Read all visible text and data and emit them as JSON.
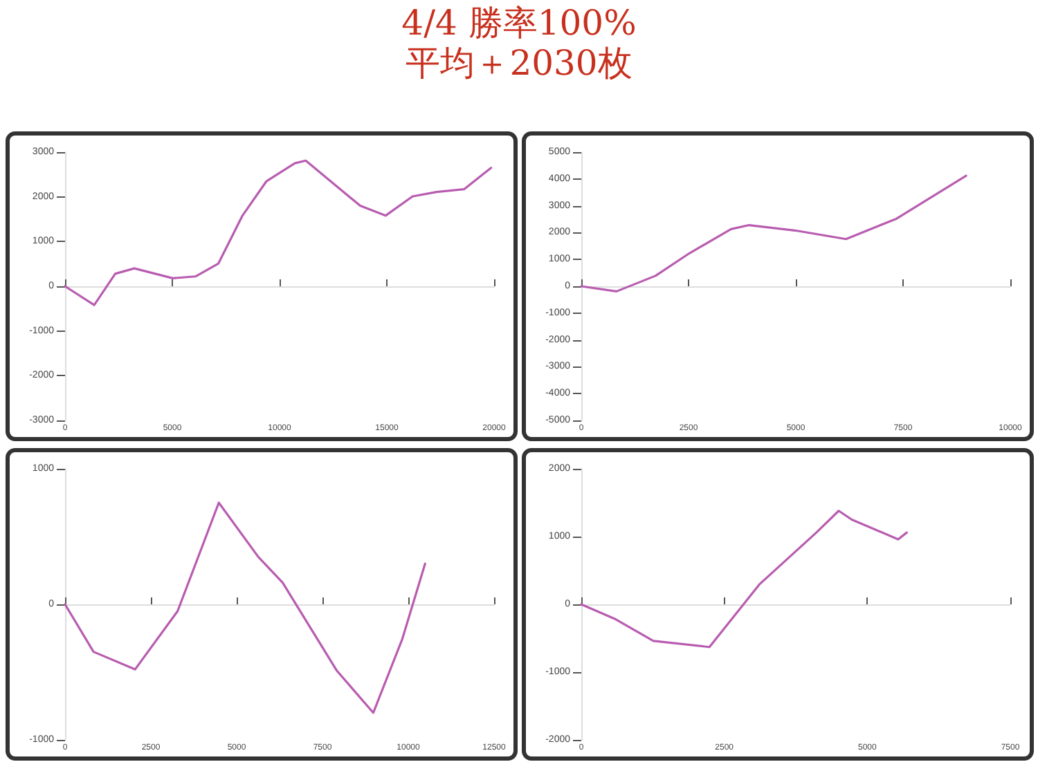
{
  "chart_data": [
    {
      "type": "line",
      "title": "4/4 勝率100%",
      "subtitle": "平均＋2030枚",
      "x": [
        0,
        1360,
        2340,
        3230,
        5020,
        6080,
        7150,
        8270,
        9390,
        10710,
        11220,
        13760,
        14940,
        16200,
        17320,
        18600,
        19860
      ],
      "series": [
        {
          "color": "#b85cb0",
          "values": [
            0,
            -420,
            280,
            400,
            180,
            220,
            510,
            1580,
            2350,
            2750,
            2810,
            1800,
            1580,
            2010,
            2110,
            2170,
            2650
          ]
        }
      ],
      "xlim": [
        0,
        20000
      ],
      "xticks": [
        0,
        5000,
        10000,
        15000,
        20000
      ],
      "ylim": [
        -3000,
        3000
      ],
      "yticks": [
        -3000,
        -2000,
        -1000,
        0,
        1000,
        2000,
        3000
      ],
      "marker": "none",
      "line_style": "solid"
    },
    {
      "type": "line",
      "x": [
        0,
        820,
        1730,
        2520,
        3490,
        3910,
        4980,
        6170,
        7350,
        8970
      ],
      "series": [
        {
          "color": "#b85cb0",
          "values": [
            0,
            -190,
            390,
            1230,
            2130,
            2280,
            2080,
            1760,
            2520,
            4120
          ]
        }
      ],
      "xlim": [
        0,
        10000
      ],
      "xticks": [
        0,
        2500,
        5000,
        7500,
        10000
      ],
      "ylim": [
        -5000,
        5000
      ],
      "yticks": [
        -5000,
        -4000,
        -3000,
        -2000,
        -1000,
        0,
        1000,
        2000,
        3000,
        4000,
        5000
      ],
      "marker": "none",
      "line_style": "solid"
    },
    {
      "type": "line",
      "x": [
        0,
        830,
        2040,
        3280,
        4480,
        5630,
        6340,
        7920,
        8980,
        9820,
        10490
      ],
      "series": [
        {
          "color": "#b85cb0",
          "values": [
            0,
            -350,
            -480,
            -50,
            750,
            350,
            160,
            -490,
            -800,
            -260,
            300
          ]
        }
      ],
      "xlim": [
        0,
        12500
      ],
      "xticks": [
        0,
        2500,
        5000,
        7500,
        10000,
        12500
      ],
      "ylim": [
        -1000,
        1000
      ],
      "yticks": [
        -1000,
        0,
        1000
      ],
      "marker": "none",
      "line_style": "solid"
    },
    {
      "type": "line",
      "x": [
        0,
        600,
        1260,
        2240,
        3120,
        4110,
        4500,
        4730,
        5540,
        5690
      ],
      "series": [
        {
          "color": "#b85cb0",
          "values": [
            0,
            -220,
            -540,
            -630,
            300,
            1060,
            1380,
            1250,
            960,
            1060
          ]
        }
      ],
      "xlim": [
        0,
        7500
      ],
      "xticks": [
        0,
        2500,
        5000,
        7500
      ],
      "ylim": [
        -2000,
        2000
      ],
      "yticks": [
        -2000,
        -1000,
        0,
        1000,
        2000
      ],
      "marker": "none",
      "line_style": "solid"
    }
  ]
}
